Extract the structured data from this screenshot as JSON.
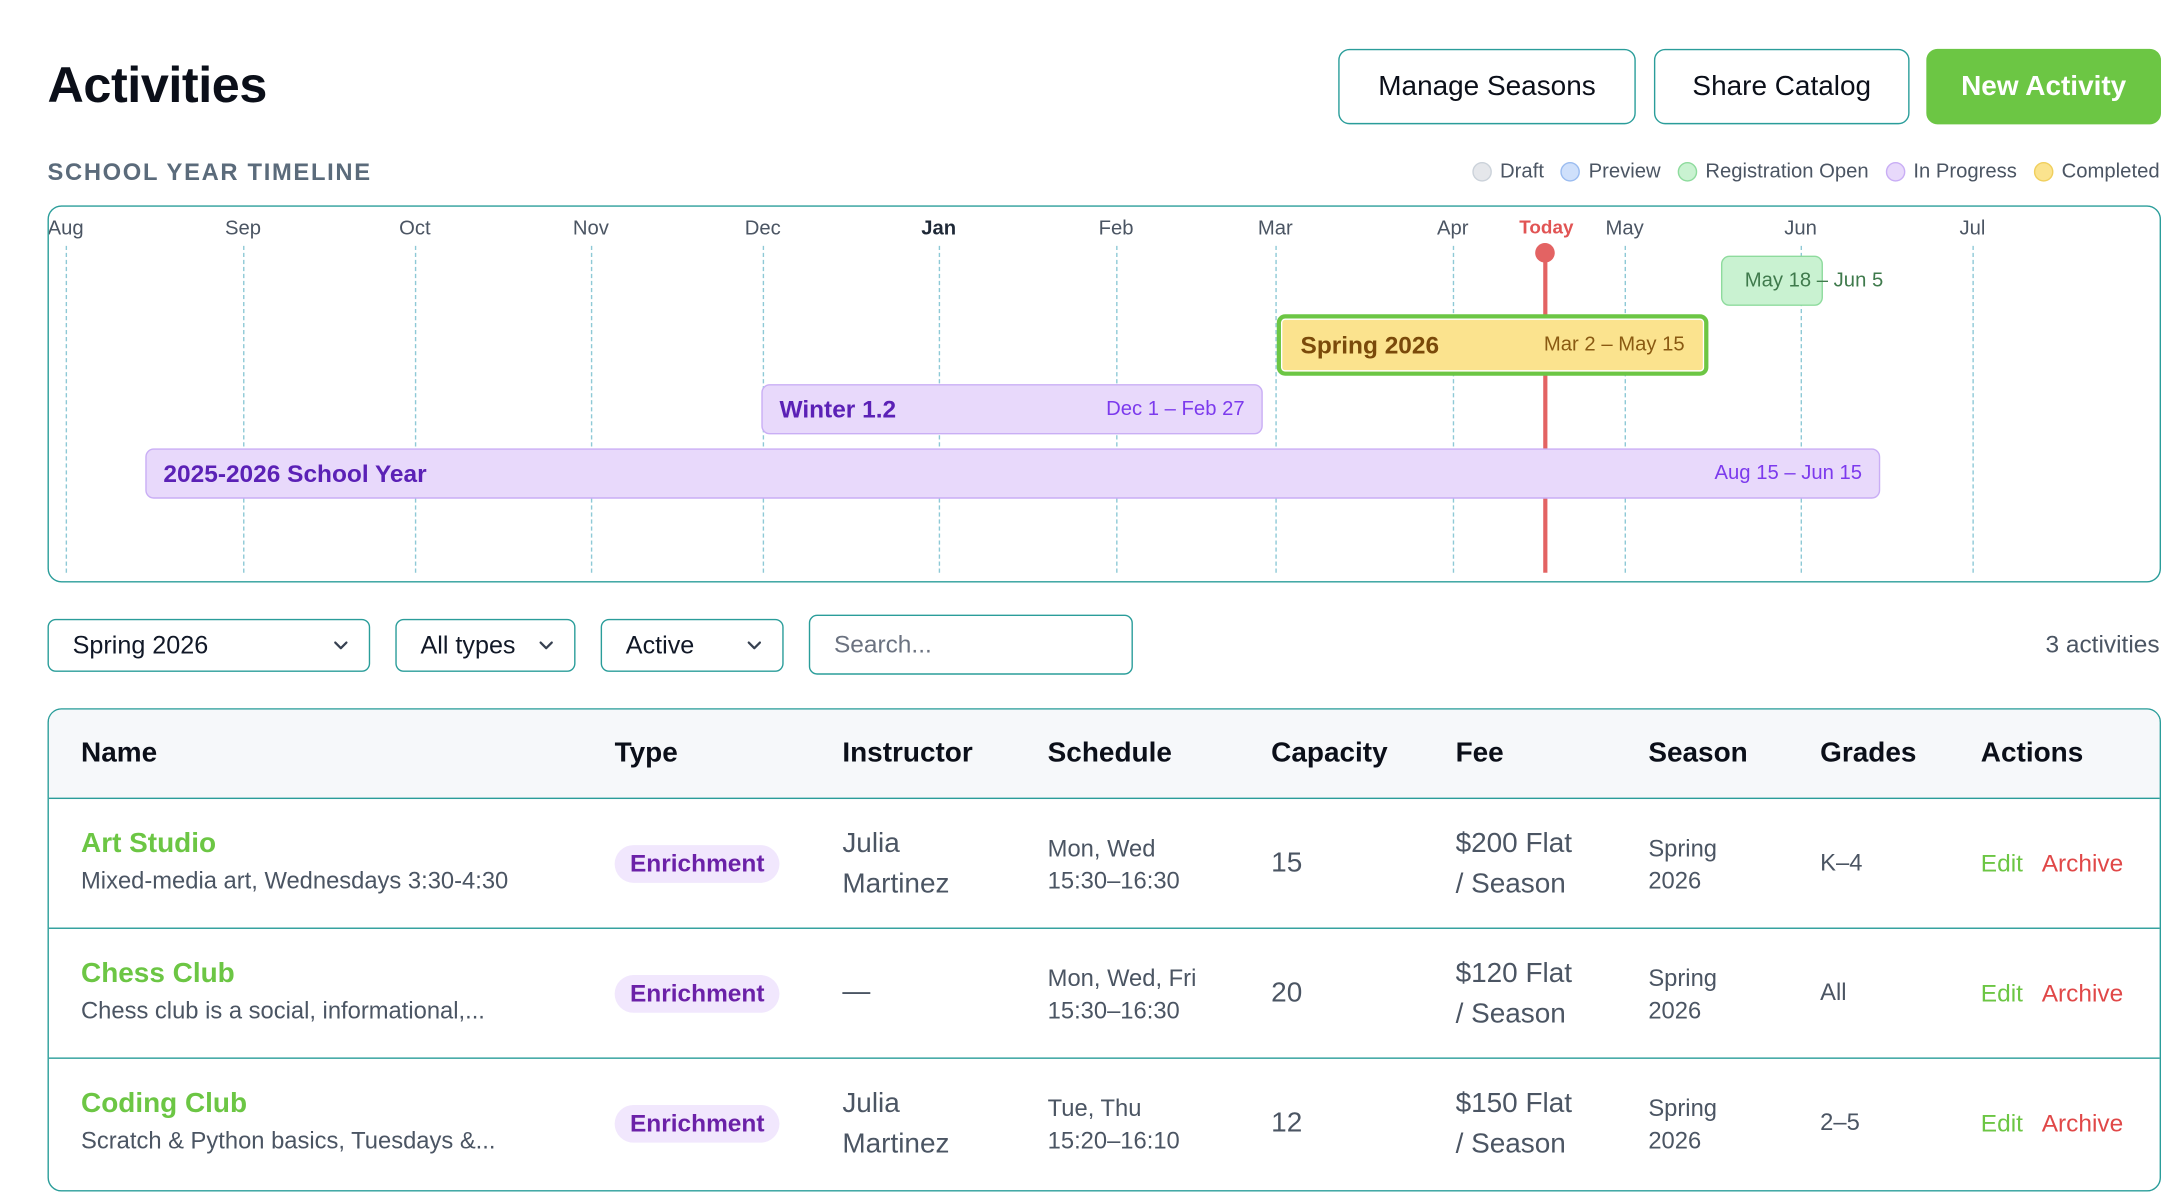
{
  "page": {
    "title": "Activities"
  },
  "header_buttons": {
    "manage_seasons": "Manage Seasons",
    "share_catalog": "Share Catalog",
    "new_activity": "New Activity"
  },
  "timeline": {
    "section_label": "SCHOOL YEAR TIMELINE",
    "legend": [
      {
        "label": "Draft",
        "fill": "#e5e7eb",
        "stroke": "#cbd2da"
      },
      {
        "label": "Preview",
        "fill": "#cfe0fb",
        "stroke": "#9bbcf0"
      },
      {
        "label": "Registration Open",
        "fill": "#c9f2d1",
        "stroke": "#8edb9d"
      },
      {
        "label": "In Progress",
        "fill": "#e8d9fb",
        "stroke": "#c9aef5"
      },
      {
        "label": "Completed",
        "fill": "#fbe38e",
        "stroke": "#f0cf5e"
      }
    ],
    "months": [
      "Aug",
      "Sep",
      "Oct",
      "Nov",
      "Dec",
      "Jan",
      "Feb",
      "Mar",
      "Apr",
      "May",
      "Jun",
      "Jul"
    ],
    "today_label": "Today",
    "bars": [
      {
        "name": "",
        "range": "May 18 – Jun 5",
        "status": "Registration Open"
      },
      {
        "name": "Spring 2026",
        "range": "Mar 2 – May 15",
        "status": "Completed",
        "selected": true
      },
      {
        "name": "Winter 1.2",
        "range": "Dec 1 – Feb 27",
        "status": "In Progress"
      },
      {
        "name": "2025-2026 School Year",
        "range": "Aug 15 – Jun 15",
        "status": "In Progress"
      }
    ]
  },
  "filters": {
    "season": "Spring 2026",
    "type": "All types",
    "status": "Active",
    "search_placeholder": "Search...",
    "count": "3 activities"
  },
  "table": {
    "headers": [
      "Name",
      "Type",
      "Instructor",
      "Schedule",
      "Capacity",
      "Fee",
      "Season",
      "Grades",
      "Actions"
    ],
    "rows": [
      {
        "name": "Art Studio",
        "description": "Mixed-media art, Wednesdays 3:30-4:30",
        "type": "Enrichment",
        "instructor_1": "Julia",
        "instructor_2": "Martinez",
        "schedule_days": "Mon, Wed",
        "schedule_time": "15:30–16:30",
        "capacity": "15",
        "fee_1": "$200 Flat",
        "fee_2": "/ Season",
        "season_1": "Spring",
        "season_2": "2026",
        "grades": "K–4",
        "edit": "Edit",
        "archive": "Archive"
      },
      {
        "name": "Chess Club",
        "description": "Chess club is a social, informational,...",
        "type": "Enrichment",
        "instructor_1": "—",
        "instructor_2": "",
        "schedule_days": "Mon, Wed, Fri",
        "schedule_time": "15:30–16:30",
        "capacity": "20",
        "fee_1": "$120 Flat",
        "fee_2": "/ Season",
        "season_1": "Spring",
        "season_2": "2026",
        "grades": "All",
        "edit": "Edit",
        "archive": "Archive"
      },
      {
        "name": "Coding Club",
        "description": "Scratch & Python basics, Tuesdays &...",
        "type": "Enrichment",
        "instructor_1": "Julia",
        "instructor_2": "Martinez",
        "schedule_days": "Tue, Thu",
        "schedule_time": "15:20–16:10",
        "capacity": "12",
        "fee_1": "$150 Flat",
        "fee_2": "/ Season",
        "season_1": "Spring",
        "season_2": "2026",
        "grades": "2–5",
        "edit": "Edit",
        "archive": "Archive"
      }
    ]
  },
  "colors": {
    "accent_green": "#6cc644",
    "border_teal": "#2a9d9a",
    "today_red": "#e36363",
    "archive_red": "#e04848"
  }
}
